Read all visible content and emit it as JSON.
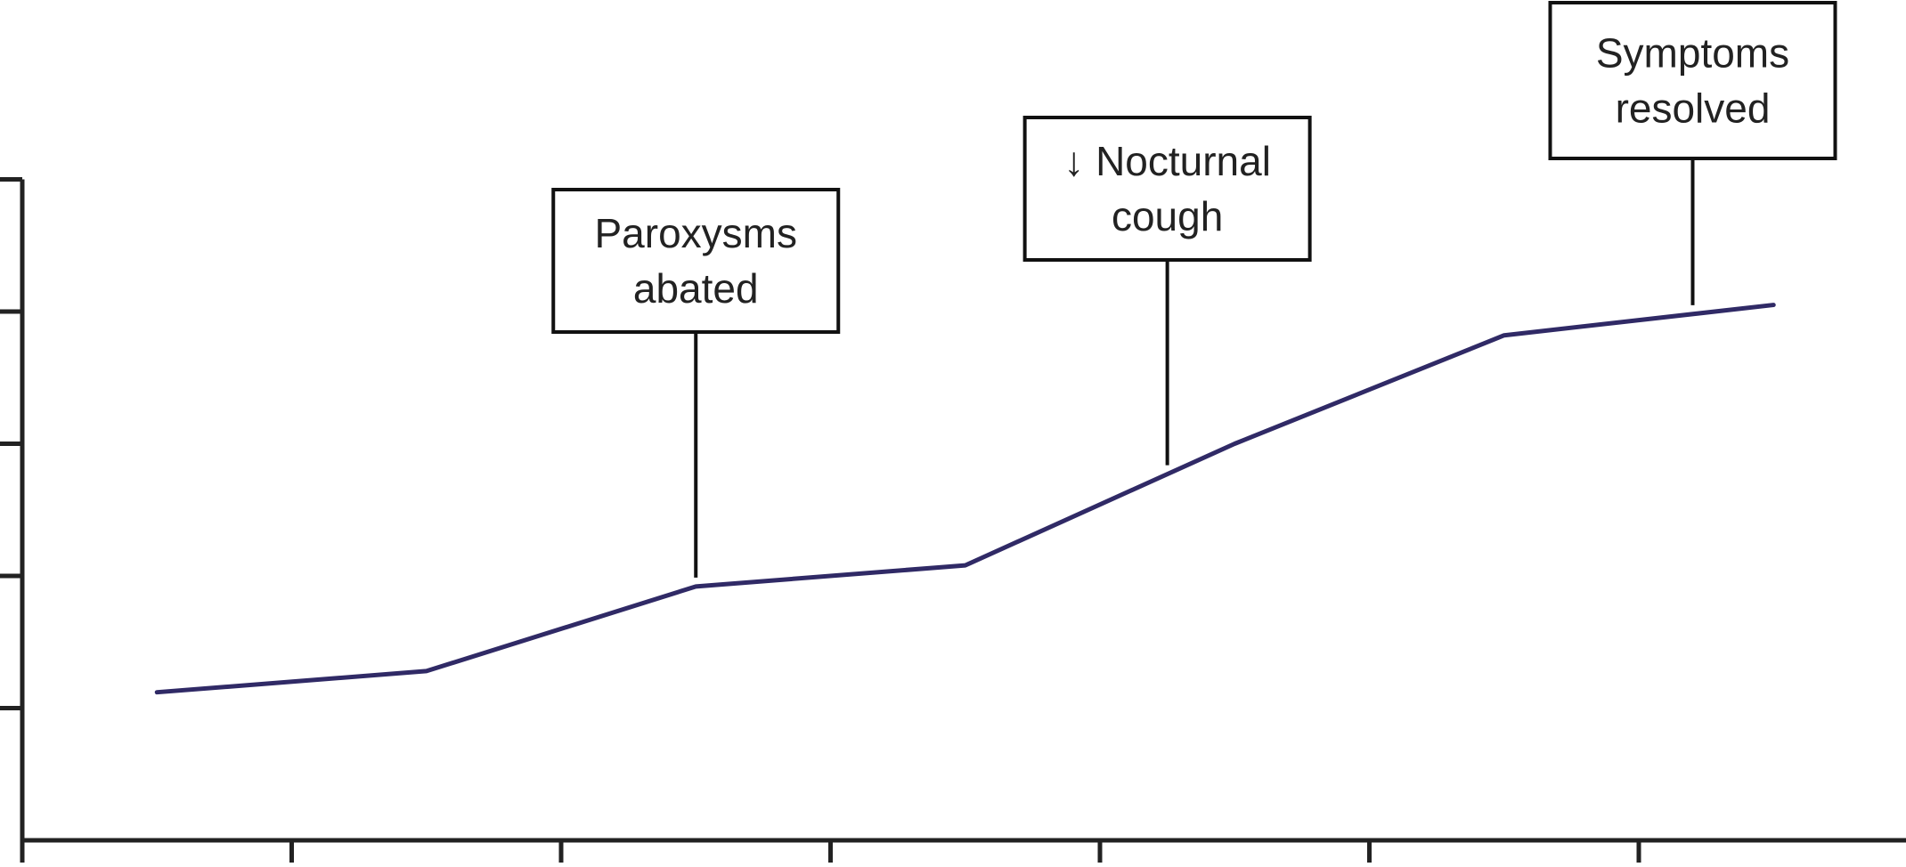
{
  "chart_data": {
    "type": "line",
    "title": "",
    "xlabel": "",
    "ylabel": "",
    "x": [
      0.5,
      1.5,
      2.5,
      3.5,
      4.5,
      5.5,
      6.5
    ],
    "xlim": [
      0,
      7
    ],
    "ylim": [
      0,
      5
    ],
    "x_ticks": [
      0,
      1,
      2,
      3,
      4,
      5,
      6,
      7
    ],
    "y_ticks": [
      0,
      1,
      2,
      3,
      4,
      5
    ],
    "grid": false,
    "series": [
      {
        "values": [
          1.12,
          1.28,
          1.92,
          2.08,
          3.0,
          3.82,
          4.05
        ]
      }
    ],
    "annotations": [
      {
        "lines": [
          "Paroxysms",
          "abated"
        ],
        "x": 2.5
      },
      {
        "lines": [
          "↓ Nocturnal",
          "cough"
        ],
        "x": 4.25
      },
      {
        "lines": [
          "Symptoms",
          "resolved"
        ],
        "x": 6.2
      }
    ],
    "colors": {
      "line": "#302a66",
      "axis": "#222222",
      "annotation": "#111111"
    }
  }
}
